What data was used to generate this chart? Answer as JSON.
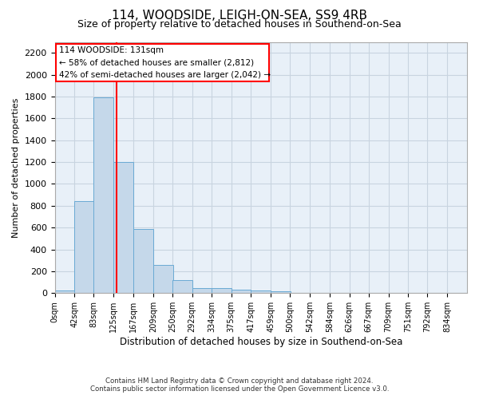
{
  "title": "114, WOODSIDE, LEIGH-ON-SEA, SS9 4RB",
  "subtitle": "Size of property relative to detached houses in Southend-on-Sea",
  "xlabel": "Distribution of detached houses by size in Southend-on-Sea",
  "ylabel": "Number of detached properties",
  "bin_labels": [
    "0sqm",
    "42sqm",
    "83sqm",
    "125sqm",
    "167sqm",
    "209sqm",
    "250sqm",
    "292sqm",
    "334sqm",
    "375sqm",
    "417sqm",
    "459sqm",
    "500sqm",
    "542sqm",
    "584sqm",
    "626sqm",
    "667sqm",
    "709sqm",
    "751sqm",
    "792sqm",
    "834sqm"
  ],
  "bin_edges": [
    0,
    42,
    83,
    125,
    167,
    209,
    250,
    292,
    334,
    375,
    417,
    459,
    500,
    542,
    584,
    626,
    667,
    709,
    751,
    792,
    834
  ],
  "bar_heights": [
    25,
    845,
    1795,
    1200,
    590,
    255,
    120,
    45,
    45,
    30,
    25,
    15,
    0,
    0,
    0,
    0,
    0,
    0,
    0,
    0,
    0
  ],
  "bar_color": "#c5d8ea",
  "bar_edge_color": "#6aaad4",
  "red_line_x": 131,
  "ylim": [
    0,
    2300
  ],
  "yticks": [
    0,
    200,
    400,
    600,
    800,
    1000,
    1200,
    1400,
    1600,
    1800,
    2000,
    2200
  ],
  "annotation_line1": "114 WOODSIDE: 131sqm",
  "annotation_line2": "← 58% of detached houses are smaller (2,812)",
  "annotation_line3": "42% of semi-detached houses are larger (2,042) →",
  "footer_line1": "Contains HM Land Registry data © Crown copyright and database right 2024.",
  "footer_line2": "Contains public sector information licensed under the Open Government Licence v3.0.",
  "bg_color": "#ffffff",
  "plot_bg_color": "#e8f0f8",
  "grid_color": "#c8d4e0",
  "title_fontsize": 11,
  "subtitle_fontsize": 9
}
